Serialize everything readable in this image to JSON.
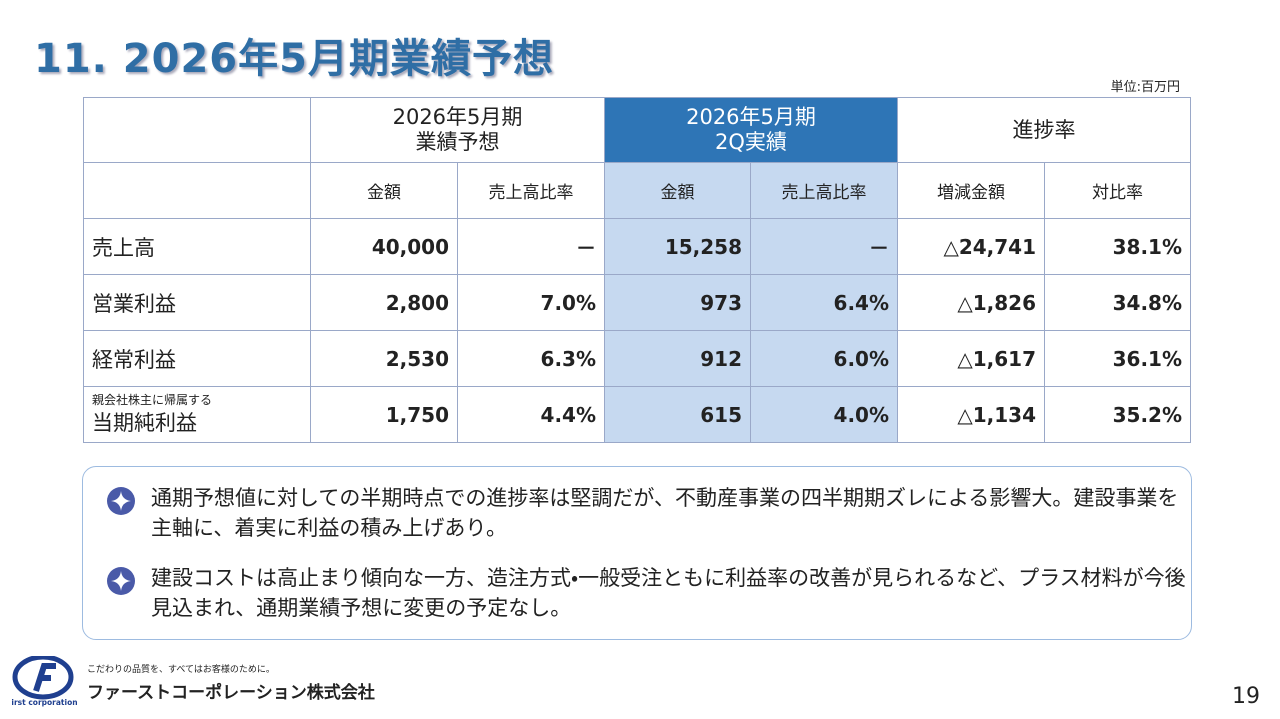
{
  "header": {
    "title": "11. 2026年5月期業績予想",
    "unit": "単位:百万円"
  },
  "table": {
    "group_headers": [
      [
        "2026年5月期",
        "業績予想"
      ],
      [
        "2026年5月期",
        "2Q実績"
      ],
      [
        "進捗率"
      ]
    ],
    "sub_headers": [
      "金額",
      "売上高比率",
      "金額",
      "売上高比率",
      "増減金額",
      "対比率"
    ],
    "rows": [
      {
        "label": "売上高",
        "cells": [
          "40,000",
          "－",
          "15,258",
          "－",
          "△24,741",
          "38.1%"
        ]
      },
      {
        "label": "営業利益",
        "cells": [
          "2,800",
          "7.0%",
          "973",
          "6.4%",
          "△1,826",
          "34.8%"
        ]
      },
      {
        "label": "経常利益",
        "cells": [
          "2,530",
          "6.3%",
          "912",
          "6.0%",
          "△1,617",
          "36.1%"
        ]
      },
      {
        "label_prefix": "親会社株主に帰属する",
        "label": "当期純利益",
        "cells": [
          "1,750",
          "4.4%",
          "615",
          "4.0%",
          "△1,134",
          "35.2%"
        ]
      }
    ]
  },
  "notes": [
    "通期予想値に対しての半期時点での進捗率は堅調だが、不動産事業の四半期期ズレによる影響大。建設事業を主軸に、着実に利益の積み上げあり。",
    "建設コストは高止まり傾向な一方、造注方式・一般受注ともに利益率の改善が見られるなど、プラス材料が今後見込まれ、通期業績予想に変更の予定なし。"
  ],
  "footer": {
    "logo_text": "first corporation",
    "tagline": "こだわりの品質を、すべてはお客様のために。",
    "company": "ファーストコーポレーション株式会社",
    "page": "19"
  }
}
